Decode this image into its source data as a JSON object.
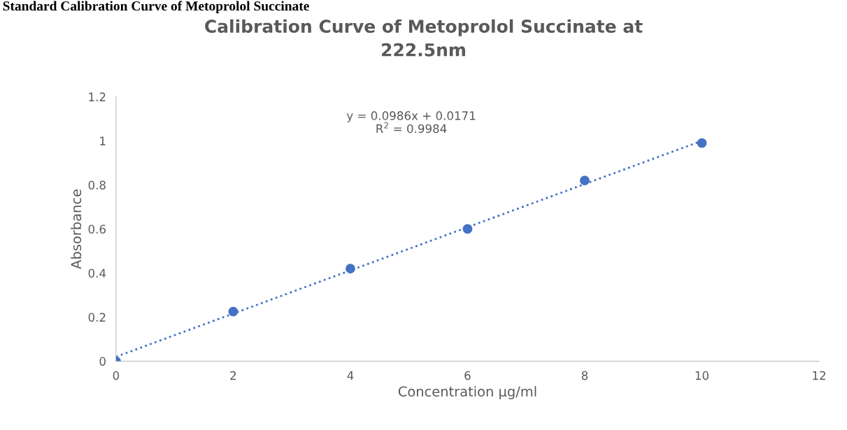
{
  "chart_data": {
    "type": "scatter",
    "title": "Calibration Curve of Metoprolol Succinate at\n222.5nm",
    "xlabel": "Concentration µg/ml",
    "ylabel": "Absorbance",
    "annotations": [
      "Standard Calibration Curve of Metoprolol Succinate",
      "y = 0.0986x + 0.0171\nR$^{2}$ = 0.9984"
    ],
    "series": [
      {
        "color": "#4472c4",
        "x": [
          0,
          2,
          4,
          6,
          8,
          10
        ],
        "values": [
          0,
          0.225,
          0.42,
          0.6,
          0.82,
          0.99
        ],
        "marker": "circle"
      },
      {
        "type": "line",
        "color": "#4472c4",
        "x": [
          0,
          10
        ],
        "values": [
          0.02,
          1.0
        ],
        "line_style": "dotted",
        "marker": "none"
      }
    ],
    "xlim": [
      0,
      12
    ],
    "xticks": [
      0,
      2,
      4,
      6,
      8,
      10,
      12
    ],
    "ylim": [
      0,
      1.2
    ],
    "yticks": [
      0,
      0.2,
      0.4,
      0.6,
      0.8,
      1,
      1.2
    ],
    "grid": false,
    "legend": false
  }
}
